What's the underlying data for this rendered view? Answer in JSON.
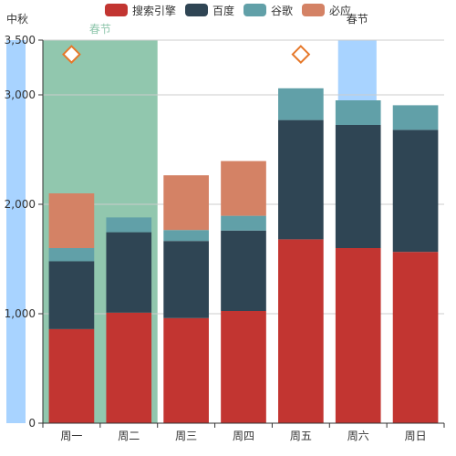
{
  "chart_data": {
    "type": "bar",
    "stacked": true,
    "categories": [
      "周一",
      "周二",
      "周三",
      "周四",
      "周五",
      "周六",
      "周日"
    ],
    "legend_position": "top",
    "grid": true,
    "ylim": [
      0,
      3500
    ],
    "y_ticks": [
      {
        "value": 0,
        "label": "0"
      },
      {
        "value": 1000,
        "label": "1,000"
      },
      {
        "value": 2000,
        "label": "2,000"
      },
      {
        "value": 3000,
        "label": "3,000"
      },
      {
        "value": 3500,
        "label": "3,500"
      }
    ],
    "series": [
      {
        "name": "搜索引擎",
        "color": "#c23531",
        "values": [
          860,
          1010,
          960,
          1025,
          1680,
          1600,
          1565
        ]
      },
      {
        "name": "百度",
        "color": "#2f4554",
        "values": [
          620,
          735,
          705,
          735,
          1090,
          1125,
          1115
        ]
      },
      {
        "name": "谷歌",
        "color": "#61a0a8",
        "values": [
          120,
          135,
          100,
          135,
          290,
          225,
          225
        ]
      },
      {
        "name": "必应",
        "color": "#d48265",
        "values": [
          500,
          0,
          500,
          500,
          0,
          0,
          0
        ]
      }
    ],
    "mark_areas": [
      {
        "label": "中秋",
        "from_category": null,
        "to_category": "周一",
        "color": "#a8d3ff",
        "label_color": "#333333"
      },
      {
        "label": "春节",
        "from_category": "周一",
        "to_category": "周二",
        "color": "#91c7ae",
        "label_color": "#91c7ae"
      },
      {
        "label": "春节",
        "from_category": "周六",
        "to_category": null,
        "color": "#a8d3ff",
        "label_color": "#333333"
      }
    ],
    "mark_points": [
      {
        "category": "周一",
        "value": 3370,
        "symbol": "diamond",
        "color": "#e6782a"
      },
      {
        "category": "周五",
        "value": 3370,
        "symbol": "diamond",
        "color": "#e6782a"
      }
    ]
  }
}
